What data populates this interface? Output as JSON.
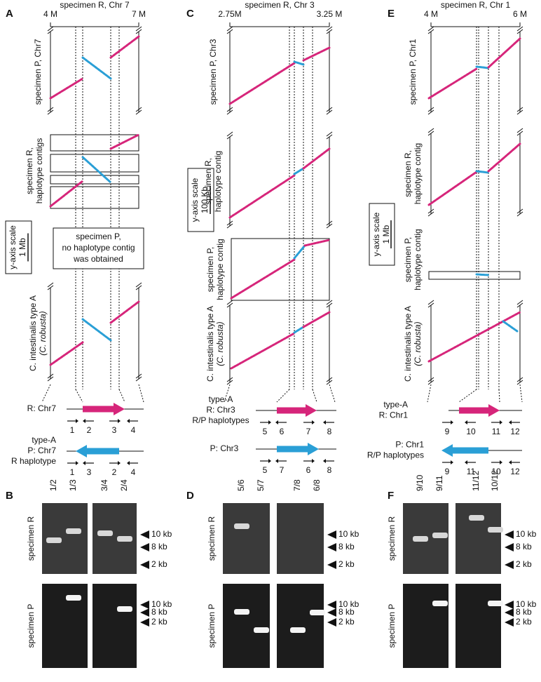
{
  "panels": [
    {
      "letter": "A",
      "axis_title": "specimen R, Chr 7",
      "axis_ticks": [
        "4 M",
        "7 M"
      ],
      "plot_labels": [
        [
          "specimen P, Chr7"
        ],
        [
          "specimen R,",
          "haplotype contigs"
        ],
        [
          "C. intestinalis type A",
          "(C. robusta)"
        ]
      ],
      "scale": [
        "y-axis scale",
        "1 Mb"
      ],
      "note": [
        "specimen P,",
        "no haplotype contig",
        "was obtained"
      ],
      "maps": [
        {
          "labels": [
            "R: Chr7"
          ],
          "primers": [
            "1",
            "2",
            "3",
            "4"
          ]
        },
        {
          "labels": [
            "type-A",
            "P: Chr7",
            "R haplotype"
          ],
          "primers": [
            "1",
            "3",
            "2",
            "4"
          ]
        }
      ],
      "gel": {
        "letter": "B",
        "lanes": [
          "1/2",
          "1/3",
          "3/4",
          "2/4"
        ],
        "rows": [
          "specimen R",
          "specimen P"
        ],
        "markers": [
          "10 kb",
          "8 kb",
          "2 kb"
        ]
      }
    },
    {
      "letter": "C",
      "axis_title": "specimen R, Chr 3",
      "axis_ticks": [
        "2.75M",
        "3.25 M"
      ],
      "plot_labels": [
        [
          "specimen P, Chr3"
        ],
        [
          "specimen R,",
          "haplotype contig"
        ],
        [
          "specimen P,",
          "haplotype contig"
        ],
        [
          "C. intestinalis type A",
          "(C. robusta)"
        ]
      ],
      "scale": [
        "y-axis scale",
        "100 Kb"
      ],
      "maps": [
        {
          "labels": [
            "type-A",
            "R: Chr3",
            "R/P haplotypes"
          ],
          "primers": [
            "5",
            "6",
            "7",
            "8"
          ]
        },
        {
          "labels": [
            "P: Chr3"
          ],
          "primers": [
            "5",
            "7",
            "6",
            "8"
          ]
        }
      ],
      "gel": {
        "letter": "D",
        "lanes": [
          "5/6",
          "5/7",
          "7/8",
          "6/8"
        ],
        "rows": [
          "specimen R",
          "specimen P"
        ],
        "markers": [
          "10 kb",
          "8 kb",
          "2 kb"
        ]
      }
    },
    {
      "letter": "E",
      "axis_title": "specimen R, Chr 1",
      "axis_ticks": [
        "4 M",
        "6 M"
      ],
      "plot_labels": [
        [
          "specimen P, Chr1"
        ],
        [
          "specimen R,",
          "haplotype contig"
        ],
        [
          "specimen P,",
          "haplotype contig"
        ],
        [
          "C. intestinalis type A",
          "(C. robusta)"
        ]
      ],
      "scale": [
        "y-axis scale",
        "1 Mb"
      ],
      "maps": [
        {
          "labels": [
            "type-A",
            "R: Chr1"
          ],
          "primers": [
            "9",
            "10",
            "11",
            "12"
          ]
        },
        {
          "labels": [
            "P: Chr1",
            "R/P haplotypes"
          ],
          "primers": [
            "9",
            "11",
            "10",
            "12"
          ]
        }
      ],
      "gel": {
        "letter": "F",
        "lanes": [
          "9/10",
          "9/11",
          "11/12",
          "10/12"
        ],
        "rows": [
          "specimen R",
          "specimen P"
        ],
        "markers": [
          "10 kb",
          "8 kb",
          "2 kb"
        ]
      }
    }
  ]
}
